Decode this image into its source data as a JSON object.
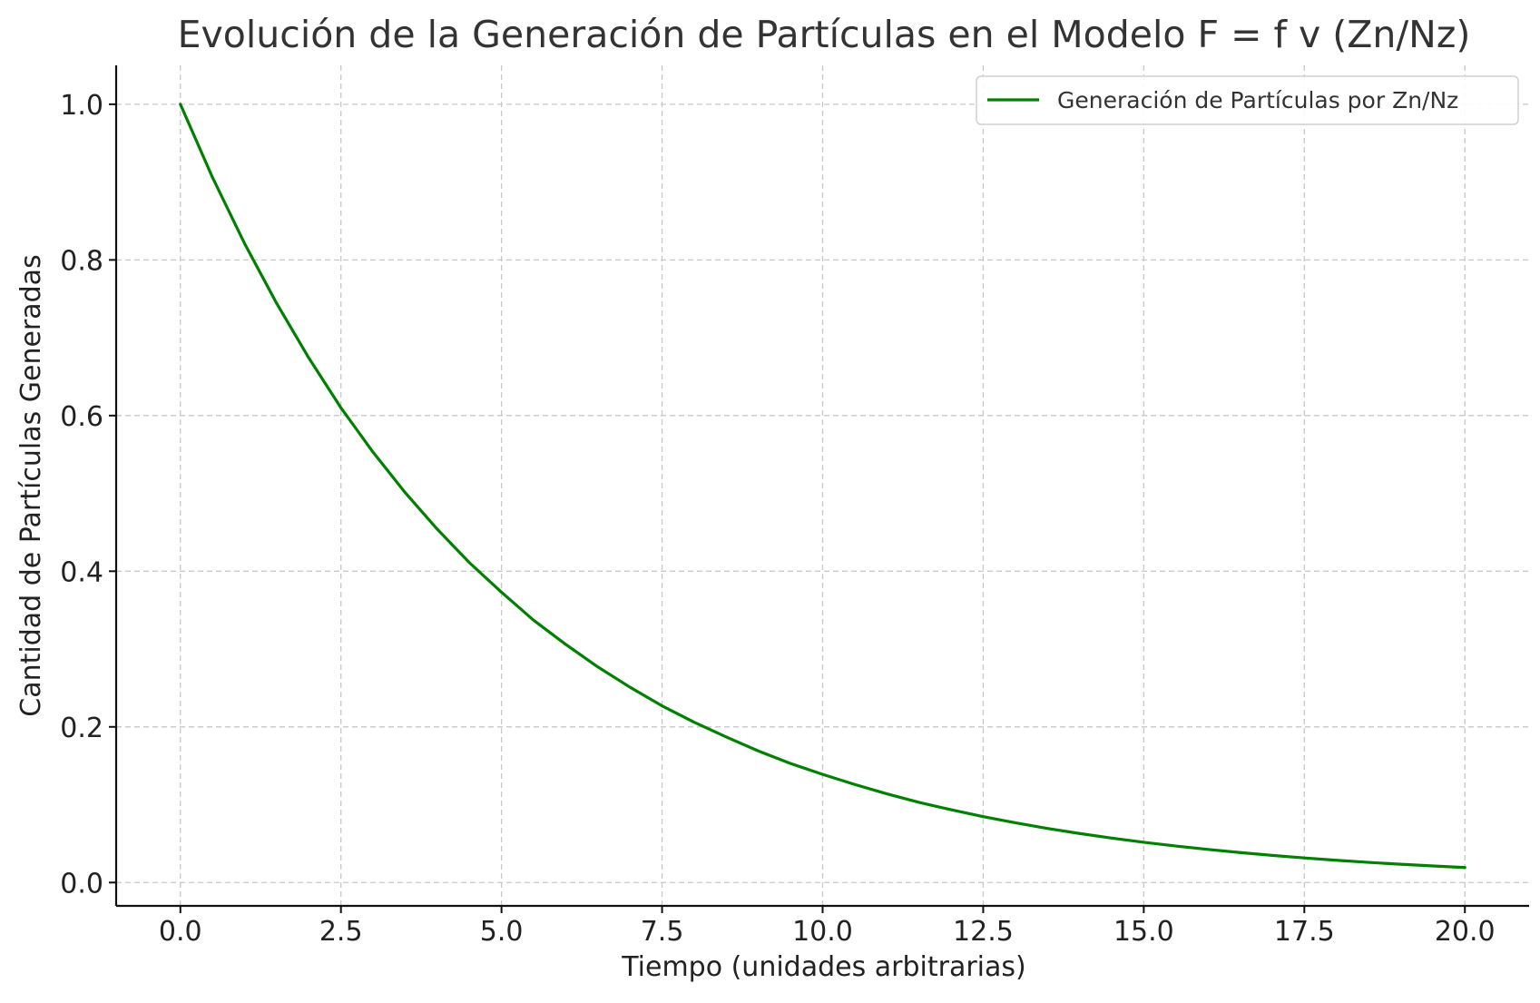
{
  "chart_data": {
    "type": "line",
    "title": "Evolución de la Generación de Partículas en el Modelo F = f v (Zn/Nz)",
    "xlabel": "Tiempo (unidades arbitrarias)",
    "ylabel": "Cantidad de Partículas Generadas",
    "xlim": [
      -1.0,
      21.0
    ],
    "ylim": [
      -0.03,
      1.05
    ],
    "xticks": [
      0.0,
      2.5,
      5.0,
      7.5,
      10.0,
      12.5,
      15.0,
      17.5,
      20.0
    ],
    "xtick_labels": [
      "0.0",
      "2.5",
      "5.0",
      "7.5",
      "10.0",
      "12.5",
      "15.0",
      "17.5",
      "20.0"
    ],
    "yticks": [
      0.0,
      0.2,
      0.4,
      0.6,
      0.8,
      1.0
    ],
    "ytick_labels": [
      "0.0",
      "0.2",
      "0.4",
      "0.6",
      "0.8",
      "1.0"
    ],
    "grid": true,
    "legend_position": "top-right",
    "series": [
      {
        "name": "Generación de Partículas por Zn/Nz",
        "color": "#008000",
        "x": [
          0,
          0.5,
          1,
          1.5,
          2,
          2.5,
          3,
          3.5,
          4,
          4.5,
          5,
          5.5,
          6,
          6.5,
          7,
          7.5,
          8,
          8.5,
          9,
          9.5,
          10,
          10.5,
          11,
          11.5,
          12,
          12.5,
          13,
          13.5,
          14,
          14.5,
          15,
          15.5,
          16,
          16.5,
          17,
          17.5,
          18,
          18.5,
          19,
          19.5,
          20
        ],
        "y": [
          1.0,
          0.906,
          0.821,
          0.744,
          0.674,
          0.61,
          0.553,
          0.501,
          0.454,
          0.411,
          0.373,
          0.337,
          0.306,
          0.277,
          0.251,
          0.227,
          0.206,
          0.187,
          0.169,
          0.153,
          0.139,
          0.126,
          0.114,
          0.103,
          0.0935,
          0.0847,
          0.0768,
          0.0695,
          0.063,
          0.0571,
          0.0517,
          0.0469,
          0.0425,
          0.0385,
          0.0349,
          0.0316,
          0.0286,
          0.0259,
          0.0235,
          0.0213,
          0.0193
        ]
      }
    ]
  }
}
